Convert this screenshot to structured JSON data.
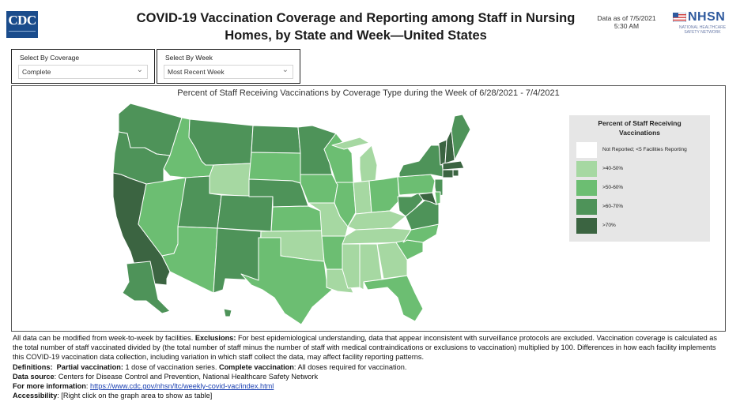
{
  "header": {
    "title_line1": "COVID-19 Vaccination Coverage and Reporting among Staff in Nursing",
    "title_line2": "Homes, by State and Week—United States",
    "data_as_of_line1": "Data as of 7/5/2021",
    "data_as_of_line2": "5:30 AM",
    "cdc_logo_text": "CDC",
    "nhsn_logo_text": "NHSN",
    "nhsn_tagline": "NATIONAL HEALTHCARE SAFETY NETWORK"
  },
  "filters": {
    "coverage": {
      "label": "Select By Coverage",
      "value": "Complete"
    },
    "week": {
      "label": "Select By Week",
      "value": "Most Recent Week"
    }
  },
  "map": {
    "title": "Percent of Staff Receiving Vaccinations by Coverage Type during the Week of 6/28/2021 - 7/4/2021",
    "bins": {
      "40-50": "#a6d8a2",
      "50-60": "#6cbe72",
      "60-70": "#4e9359",
      "70plus": "#3b6441"
    },
    "states": [
      {
        "id": "WA",
        "bin": "60-70"
      },
      {
        "id": "OR",
        "bin": "60-70"
      },
      {
        "id": "CA",
        "bin": "70plus"
      },
      {
        "id": "NV",
        "bin": "50-60"
      },
      {
        "id": "ID",
        "bin": "50-60"
      },
      {
        "id": "MT",
        "bin": "60-70"
      },
      {
        "id": "WY",
        "bin": "40-50"
      },
      {
        "id": "UT",
        "bin": "60-70"
      },
      {
        "id": "AZ",
        "bin": "50-60"
      },
      {
        "id": "CO",
        "bin": "60-70"
      },
      {
        "id": "NM",
        "bin": "60-70"
      },
      {
        "id": "ND",
        "bin": "60-70"
      },
      {
        "id": "SD",
        "bin": "50-60"
      },
      {
        "id": "NE",
        "bin": "60-70"
      },
      {
        "id": "KS",
        "bin": "50-60"
      },
      {
        "id": "OK",
        "bin": "40-50"
      },
      {
        "id": "TX",
        "bin": "50-60"
      },
      {
        "id": "MN",
        "bin": "60-70"
      },
      {
        "id": "IA",
        "bin": "50-60"
      },
      {
        "id": "MO",
        "bin": "40-50"
      },
      {
        "id": "AR",
        "bin": "50-60"
      },
      {
        "id": "LA",
        "bin": "40-50"
      },
      {
        "id": "WI",
        "bin": "50-60"
      },
      {
        "id": "IL",
        "bin": "50-60"
      },
      {
        "id": "MI",
        "bin": "40-50"
      },
      {
        "id": "IN",
        "bin": "40-50"
      },
      {
        "id": "OH",
        "bin": "50-60"
      },
      {
        "id": "KY",
        "bin": "40-50"
      },
      {
        "id": "TN",
        "bin": "40-50"
      },
      {
        "id": "MS",
        "bin": "40-50"
      },
      {
        "id": "AL",
        "bin": "40-50"
      },
      {
        "id": "GA",
        "bin": "40-50"
      },
      {
        "id": "FL",
        "bin": "50-60"
      },
      {
        "id": "SC",
        "bin": "50-60"
      },
      {
        "id": "NC",
        "bin": "50-60"
      },
      {
        "id": "VA",
        "bin": "60-70"
      },
      {
        "id": "WV",
        "bin": "60-70"
      },
      {
        "id": "PA",
        "bin": "50-60"
      },
      {
        "id": "NY",
        "bin": "60-70"
      },
      {
        "id": "NJ",
        "bin": "60-70"
      },
      {
        "id": "MD",
        "bin": "70plus"
      },
      {
        "id": "DE",
        "bin": "50-60"
      },
      {
        "id": "VT",
        "bin": "70plus"
      },
      {
        "id": "NH",
        "bin": "70plus"
      },
      {
        "id": "ME",
        "bin": "60-70"
      },
      {
        "id": "MA",
        "bin": "70plus"
      },
      {
        "id": "CT",
        "bin": "70plus"
      },
      {
        "id": "RI",
        "bin": "70plus"
      },
      {
        "id": "AK",
        "bin": "60-70"
      },
      {
        "id": "HI",
        "bin": "60-70"
      }
    ]
  },
  "legend": {
    "title_line1": "Percent of Staff Receiving",
    "title_line2": "Vaccinations",
    "items": [
      {
        "label": "Not Reported; <5 Facilities Reporting",
        "color": "#ffffff"
      },
      {
        "label": ">40-50%",
        "color": "#a6d8a2"
      },
      {
        "label": ">50-60%",
        "color": "#6cbe72"
      },
      {
        "label": ">60-70%",
        "color": "#4e9359"
      },
      {
        "label": ">70%",
        "color": "#3b6441"
      }
    ]
  },
  "notes": {
    "p1_a": "All data can be modified from week-to-week by facilities. ",
    "p1_b": "Exclusions:",
    "p1_c": " For best epidemiological understanding, data that appear inconsistent with surveillance protocols are excluded. Vaccination coverage is calculated as the total number of staff vaccinated divided by (the total number of staff minus the number of staff with medical contraindications or exclusions to vaccination) multiplied by 100. Differences in how each facility implements this COVID-19 vaccination data collection, including variation in which staff collect the data, may affect facility reporting patterns.",
    "def_label": "Definitions:",
    "partial_label": "Partial vaccination:",
    "partial_text": " 1 dose of vaccination series.   ",
    "complete_label": "Complete vaccination",
    "complete_text": ":  All doses required for vaccination.",
    "source_label": "Data source",
    "source_text": ": Centers for Disease Control and Prevention, National Healthcare Safety Network",
    "more_label": "For more information",
    "more_link": "https://www.cdc.gov/nhsn/ltc/weekly-covid-vac/index.html",
    "access_label": "Accessibility",
    "access_text": ": [Right click on the graph area to show as table]"
  }
}
